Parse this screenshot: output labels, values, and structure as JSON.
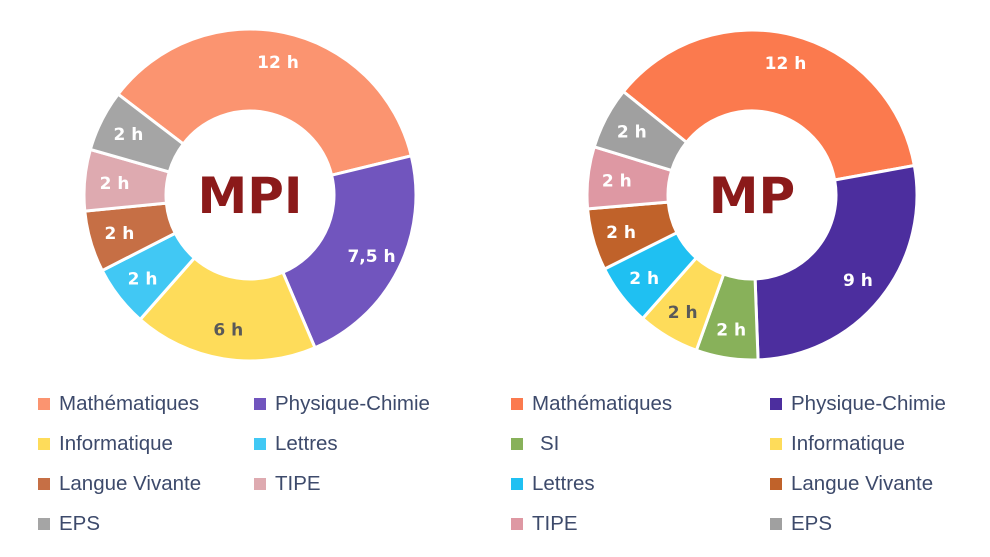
{
  "chart_data": [
    {
      "type": "pie",
      "title": "MPI",
      "categories": [
        "Mathématiques",
        "Physique-Chimie",
        "Informatique",
        "Lettres",
        "Langue Vivante",
        "TIPE",
        "EPS"
      ],
      "values": [
        12,
        7.5,
        6,
        2,
        2,
        2,
        2
      ],
      "labels": [
        "12 h",
        "7,5 h",
        "6 h",
        "2 h",
        "2 h",
        "2 h",
        "2 h"
      ],
      "colors": [
        "#fb9470",
        "#7155be",
        "#fedc5a",
        "#41c8f4",
        "#c66f45",
        "#deaab0",
        "#a5a5a5"
      ],
      "label_colors": [
        "#ffffff",
        "#ffffff",
        "#595959",
        "#ffffff",
        "#ffffff",
        "#ffffff",
        "#ffffff"
      ],
      "legend": [
        {
          "label": "Mathématiques",
          "color": "#fb9470"
        },
        {
          "label": "Physique-Chimie",
          "color": "#7155be"
        },
        {
          "label": "Informatique",
          "color": "#fedc5a"
        },
        {
          "label": "Lettres",
          "color": "#41c8f4"
        },
        {
          "label": "Langue Vivante",
          "color": "#c66f45"
        },
        {
          "label": "TIPE",
          "color": "#deaab0"
        },
        {
          "label": "EPS",
          "color": "#a5a5a5"
        }
      ]
    },
    {
      "type": "pie",
      "title": "MP",
      "categories": [
        "Mathématiques",
        "Physique-Chimie",
        "SI",
        "Informatique",
        "Lettres",
        "Langue Vivante",
        "TIPE",
        "EPS"
      ],
      "values": [
        12,
        9,
        2,
        2,
        2,
        2,
        2,
        2
      ],
      "labels": [
        "12 h",
        "9 h",
        "2 h",
        "2 h",
        "2 h",
        "2 h",
        "2 h",
        "2 h"
      ],
      "colors": [
        "#fb7a4e",
        "#4c2e9e",
        "#88b15a",
        "#fedc5a",
        "#1fc0f2",
        "#c0622a",
        "#de98a3",
        "#a0a0a0"
      ],
      "label_colors": [
        "#ffffff",
        "#ffffff",
        "#ffffff",
        "#595959",
        "#ffffff",
        "#ffffff",
        "#ffffff",
        "#ffffff"
      ],
      "legend": [
        {
          "label": "Mathématiques",
          "color": "#fb7a4e"
        },
        {
          "label": "Physique-Chimie",
          "color": "#4c2e9e"
        },
        {
          "label": "SI",
          "color": "#88b15a"
        },
        {
          "label": "Informatique",
          "color": "#fedc5a"
        },
        {
          "label": "Lettres",
          "color": "#1fc0f2"
        },
        {
          "label": "Langue Vivante",
          "color": "#c0622a"
        },
        {
          "label": "TIPE",
          "color": "#de98a3"
        },
        {
          "label": "EPS",
          "color": "#a0a0a0"
        }
      ]
    }
  ]
}
